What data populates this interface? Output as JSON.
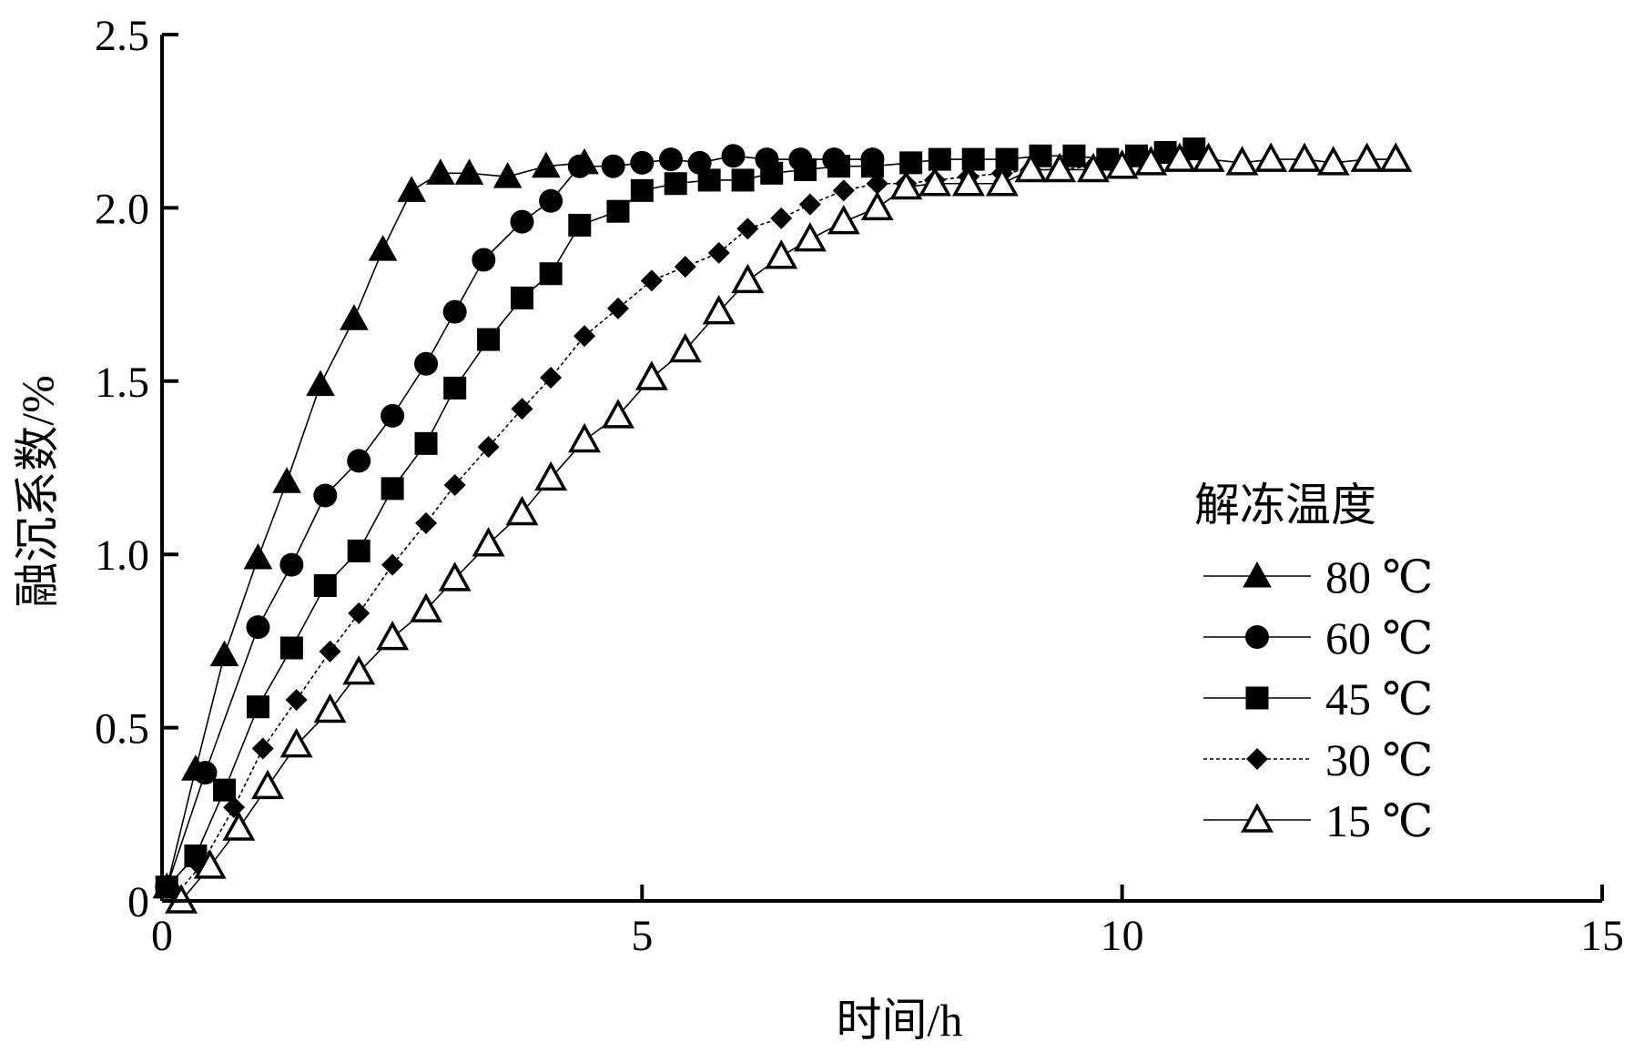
{
  "chart_data": {
    "type": "scatter",
    "title": "",
    "xlabel": "时间/h",
    "ylabel": "融沉系数/%",
    "xlim": [
      0,
      15
    ],
    "ylim": [
      0,
      2.5
    ],
    "xticks": [
      "0",
      "5",
      "10",
      "15"
    ],
    "yticks": [
      "0",
      "0.5",
      "1.0",
      "1.5",
      "2.0",
      "2.5"
    ],
    "xtick_values": [
      0,
      5,
      10,
      15
    ],
    "ytick_values": [
      0,
      0.5,
      1.0,
      1.5,
      2.0,
      2.5
    ],
    "grid": false,
    "legend_title": "解冻温度",
    "legend_position": "right",
    "series": [
      {
        "name": "80 ℃",
        "marker": "triangle-filled",
        "line": "solid",
        "x": [
          0.05,
          0.35,
          0.65,
          1.0,
          1.3,
          1.65,
          2.0,
          2.3,
          2.6,
          2.9,
          3.2,
          3.6,
          4.0,
          4.4
        ],
        "y": [
          0.04,
          0.38,
          0.71,
          0.99,
          1.21,
          1.49,
          1.68,
          1.88,
          2.05,
          2.1,
          2.1,
          2.09,
          2.12,
          2.13
        ]
      },
      {
        "name": "60 ℃",
        "marker": "circle-filled",
        "line": "solid",
        "x": [
          0.05,
          0.45,
          1.0,
          1.35,
          1.7,
          2.05,
          2.4,
          2.75,
          3.05,
          3.35,
          3.75,
          4.05,
          4.35,
          4.7,
          5.0,
          5.3,
          5.6,
          5.95,
          6.3,
          6.65,
          7.0,
          7.4
        ],
        "y": [
          0.04,
          0.37,
          0.79,
          0.97,
          1.17,
          1.27,
          1.4,
          1.55,
          1.7,
          1.85,
          1.96,
          2.02,
          2.12,
          2.12,
          2.13,
          2.14,
          2.13,
          2.15,
          2.14,
          2.14,
          2.14,
          2.14
        ]
      },
      {
        "name": "45 ℃",
        "marker": "square-filled",
        "line": "solid",
        "x": [
          0.05,
          0.35,
          0.65,
          1.0,
          1.35,
          1.7,
          2.05,
          2.4,
          2.75,
          3.05,
          3.4,
          3.75,
          4.05,
          4.35,
          4.75,
          5.0,
          5.35,
          5.7,
          6.05,
          6.35,
          6.7,
          7.05,
          7.4,
          7.8,
          8.1,
          8.45,
          8.8,
          9.15,
          9.5,
          9.85,
          10.15,
          10.45,
          10.75
        ],
        "y": [
          0.04,
          0.13,
          0.32,
          0.56,
          0.73,
          0.91,
          1.01,
          1.19,
          1.32,
          1.48,
          1.62,
          1.74,
          1.81,
          1.95,
          1.99,
          2.05,
          2.07,
          2.08,
          2.08,
          2.1,
          2.11,
          2.12,
          2.12,
          2.13,
          2.14,
          2.14,
          2.14,
          2.15,
          2.15,
          2.14,
          2.15,
          2.16,
          2.17
        ]
      },
      {
        "name": "30 ℃",
        "marker": "diamond-filled",
        "line": "dashed",
        "x": [
          0.15,
          0.4,
          0.75,
          1.05,
          1.4,
          1.75,
          2.05,
          2.4,
          2.75,
          3.05,
          3.4,
          3.75,
          4.05,
          4.4,
          4.75,
          5.1,
          5.45,
          5.8,
          6.1,
          6.45,
          6.75,
          7.1,
          7.45,
          7.75,
          8.05,
          8.4,
          8.75,
          9.05,
          9.35,
          9.7,
          10.0,
          10.3
        ],
        "y": [
          0.02,
          0.1,
          0.27,
          0.44,
          0.58,
          0.72,
          0.83,
          0.97,
          1.09,
          1.2,
          1.31,
          1.42,
          1.51,
          1.63,
          1.71,
          1.79,
          1.83,
          1.87,
          1.94,
          1.97,
          2.01,
          2.05,
          2.07,
          2.07,
          2.08,
          2.09,
          2.1,
          2.11,
          2.11,
          2.12,
          2.12,
          2.13
        ]
      },
      {
        "name": "15 ℃",
        "marker": "triangle-open",
        "line": "solid",
        "x": [
          0.2,
          0.5,
          0.8,
          1.1,
          1.4,
          1.75,
          2.05,
          2.4,
          2.75,
          3.05,
          3.4,
          3.75,
          4.05,
          4.4,
          4.75,
          5.1,
          5.45,
          5.8,
          6.1,
          6.45,
          6.75,
          7.1,
          7.45,
          7.75,
          8.05,
          8.4,
          8.75,
          9.05,
          9.35,
          9.7,
          10.0,
          10.3,
          10.6,
          10.9,
          11.25,
          11.55,
          11.9,
          12.2,
          12.55,
          12.85
        ],
        "y": [
          0.0,
          0.1,
          0.21,
          0.33,
          0.45,
          0.55,
          0.66,
          0.76,
          0.84,
          0.93,
          1.03,
          1.12,
          1.22,
          1.33,
          1.4,
          1.51,
          1.59,
          1.7,
          1.79,
          1.86,
          1.91,
          1.96,
          2.0,
          2.06,
          2.07,
          2.07,
          2.07,
          2.11,
          2.11,
          2.11,
          2.12,
          2.13,
          2.14,
          2.14,
          2.13,
          2.14,
          2.14,
          2.13,
          2.14,
          2.14
        ]
      }
    ]
  }
}
